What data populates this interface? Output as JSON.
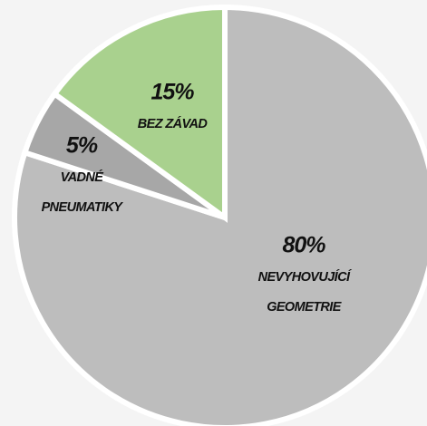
{
  "chart_data": {
    "type": "pie",
    "categories": [
      [
        "NEVYHOVUJÍCÍ",
        "GEOMETRIE"
      ],
      [
        "VADNÉ",
        "PNEUMATIKY"
      ],
      [
        "BEZ ZÁVAD"
      ]
    ],
    "values": [
      80,
      5,
      15
    ],
    "value_labels": [
      "80%",
      "5%",
      "15%"
    ],
    "colors": [
      "#bdbdbd",
      "#a7a7a7",
      "#a9d18e"
    ]
  }
}
